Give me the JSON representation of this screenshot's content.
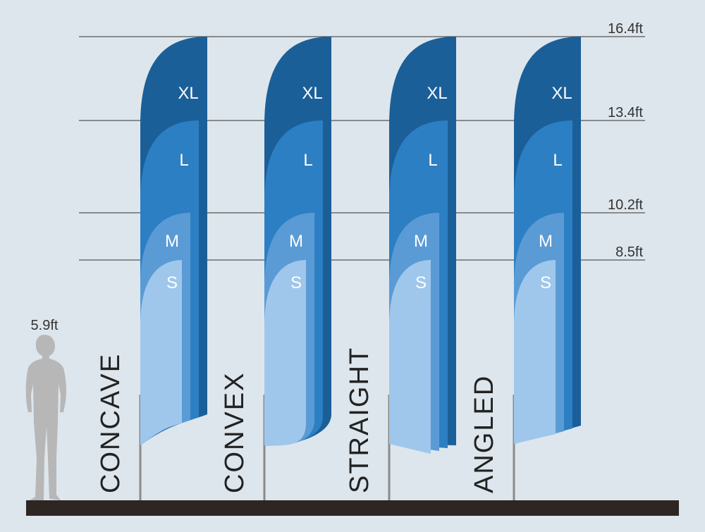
{
  "height_lines": [
    {
      "label": "16.4ft",
      "value": 16.4
    },
    {
      "label": "13.4ft",
      "value": 13.4
    },
    {
      "label": "10.2ft",
      "value": 10.2
    },
    {
      "label": "8.5ft",
      "value": 8.5
    }
  ],
  "person": {
    "label": "5.9ft",
    "value": 5.9
  },
  "sizes": [
    "XL",
    "L",
    "M",
    "S"
  ],
  "flags": [
    {
      "shape": "concave",
      "name": "CONCAVE"
    },
    {
      "shape": "convex",
      "name": "CONVEX"
    },
    {
      "shape": "straight",
      "name": "STRAIGHT"
    },
    {
      "shape": "angled",
      "name": "ANGLED"
    }
  ],
  "colors": {
    "background": "#dde6ec",
    "xl": "#1b5f99",
    "l": "#2c7fc3",
    "m": "#5a9bd6",
    "s": "#9fc7ec",
    "pole": "#8a8a8a",
    "ground": "#2e2623",
    "person": "#b7b7b7",
    "line": "#555555"
  }
}
